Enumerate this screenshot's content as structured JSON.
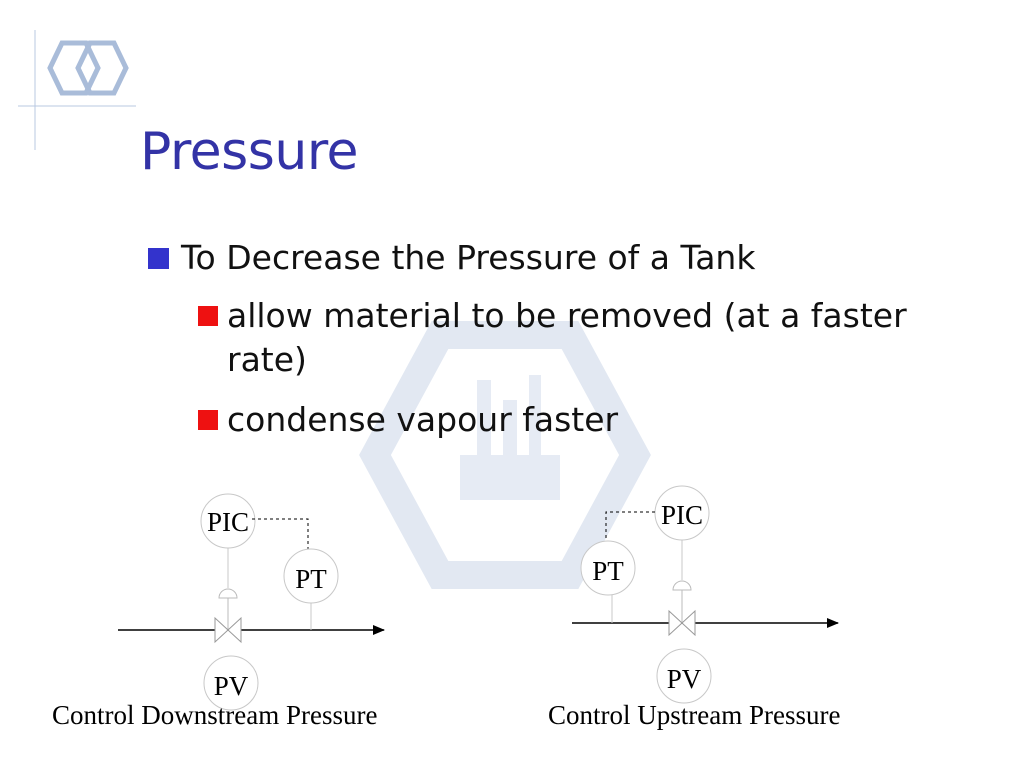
{
  "slide": {
    "title": "Pressure",
    "bullet": "To Decrease the Pressure of a Tank",
    "sub_bullets": [
      "allow material to be removed (at a faster rate)",
      "condense vapour faster"
    ]
  },
  "diagram_left": {
    "controller_label": "PIC",
    "transmitter_label": "PT",
    "valve_label": "PV",
    "caption": "Control Downstream Pressure"
  },
  "diagram_right": {
    "controller_label": "PIC",
    "transmitter_label": "PT",
    "valve_label": "PV",
    "caption": "Control Upstream Pressure"
  },
  "colors": {
    "title": "#3333a6",
    "bullet_square": "#3333cc",
    "sub_bullet_square": "#ee1111",
    "logo": "#a9bcd9",
    "watermark": "#dde5f0"
  }
}
